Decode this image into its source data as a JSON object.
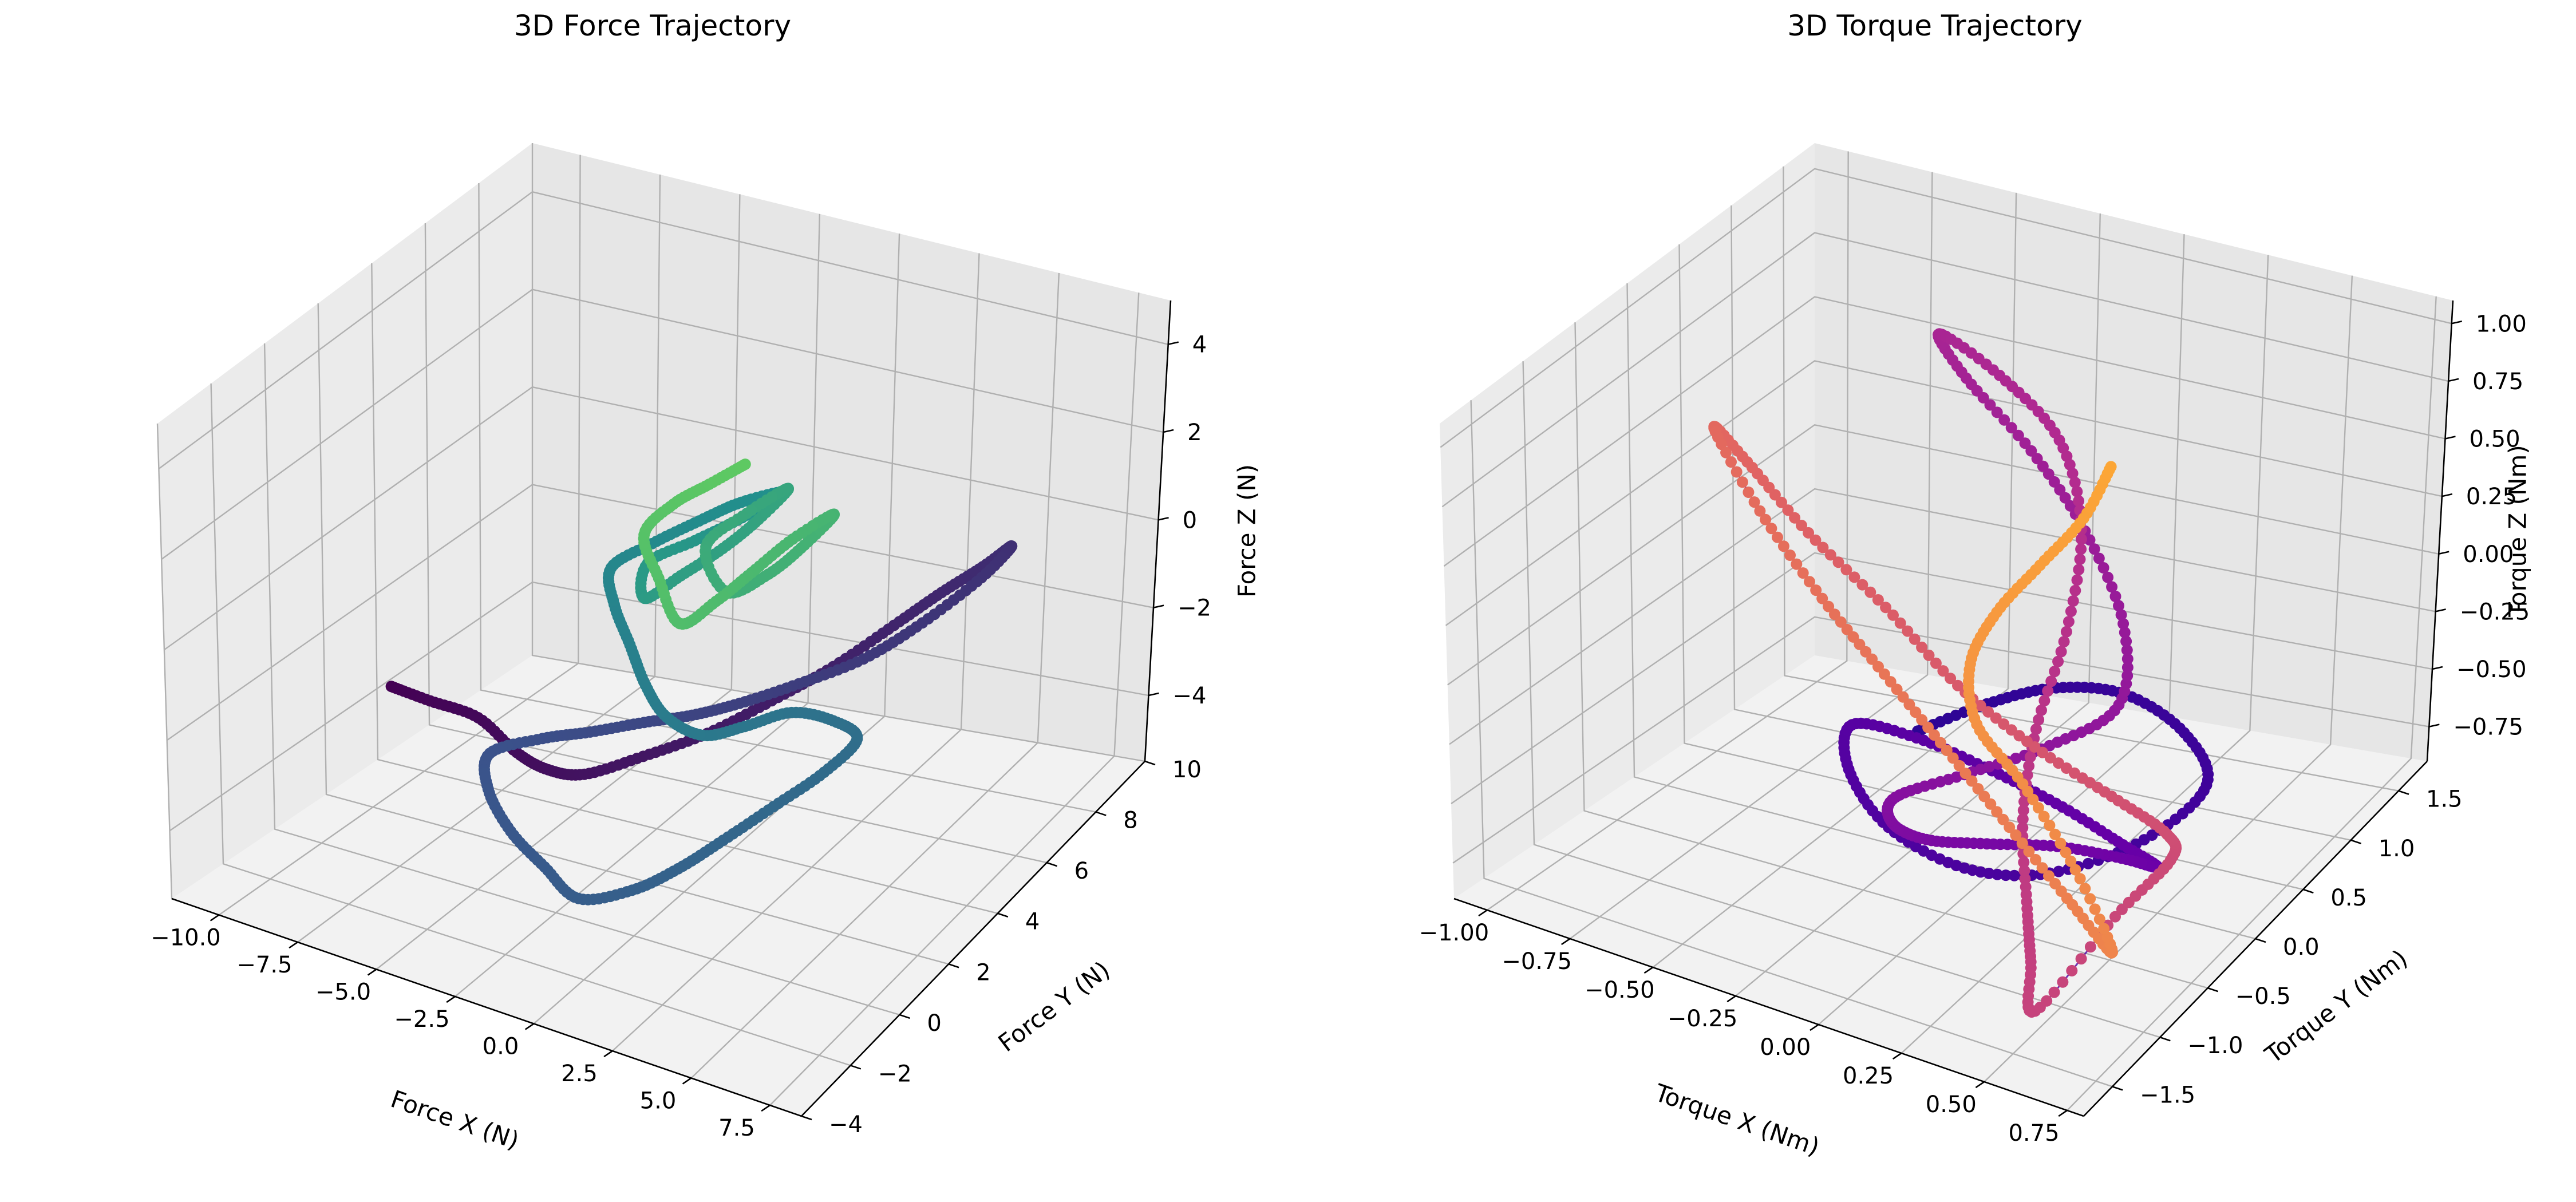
{
  "chart_data": [
    {
      "type": "scatter3d",
      "title": "3D Force Trajectory",
      "xlabel": "Force X (N)",
      "ylabel": "Force Y (N)",
      "zlabel": "Force Z (N)",
      "xlim": [
        -11.5,
        8.5
      ],
      "ylim": [
        -4,
        10
      ],
      "zlim": [
        -5.5,
        5
      ],
      "xticks": [
        "−10.0",
        "−7.5",
        "−5.0",
        "−2.5",
        "0.0",
        "2.5",
        "5.0",
        "7.5"
      ],
      "xtick_values": [
        -10,
        -7.5,
        -5,
        -2.5,
        0,
        2.5,
        5,
        7.5
      ],
      "yticks": [
        "−4",
        "−2",
        "0",
        "2",
        "4",
        "6",
        "8",
        "10"
      ],
      "ytick_values": [
        -4,
        -2,
        0,
        2,
        4,
        6,
        8,
        10
      ],
      "zticks": [
        "−4",
        "−2",
        "0",
        "2",
        "4"
      ],
      "ztick_values": [
        -4,
        -2,
        0,
        2,
        4
      ],
      "grid": true,
      "colormap": "viridis",
      "series": [
        {
          "color_stops": [
            "#440154",
            "#3b528b",
            "#21918c",
            "#5ec962"
          ],
          "values": [
            [
              -8.5,
              1.0,
              -2.2
            ],
            [
              -7.6,
              1.4,
              -2.5
            ],
            [
              -6.4,
              1.8,
              -2.8
            ],
            [
              -5.0,
              1.6,
              -3.2
            ],
            [
              -3.5,
              1.0,
              -3.0
            ],
            [
              -2.0,
              0.6,
              -2.6
            ],
            [
              -0.6,
              1.2,
              -2.2
            ],
            [
              0.8,
              2.0,
              -1.8
            ],
            [
              2.2,
              2.8,
              -1.2
            ],
            [
              3.5,
              3.6,
              -0.6
            ],
            [
              4.6,
              4.6,
              0.0
            ],
            [
              5.6,
              5.2,
              0.6
            ],
            [
              6.4,
              5.8,
              1.0
            ],
            [
              6.8,
              6.4,
              1.2
            ],
            [
              6.2,
              6.0,
              0.6
            ],
            [
              5.0,
              5.2,
              -0.2
            ],
            [
              3.8,
              4.4,
              -0.8
            ],
            [
              2.4,
              3.6,
              -1.2
            ],
            [
              1.0,
              3.0,
              -1.6
            ],
            [
              -0.2,
              2.6,
              -1.9
            ],
            [
              -1.4,
              2.2,
              -2.1
            ],
            [
              -2.8,
              1.8,
              -2.4
            ],
            [
              -4.0,
              1.4,
              -2.6
            ],
            [
              -5.2,
              0.8,
              -2.9
            ],
            [
              -4.6,
              0.0,
              -3.2
            ],
            [
              -3.4,
              -0.6,
              -3.6
            ],
            [
              -2.0,
              -1.0,
              -3.9
            ],
            [
              -0.6,
              -1.4,
              -4.1
            ],
            [
              0.8,
              -1.0,
              -3.8
            ],
            [
              1.8,
              -0.4,
              -3.4
            ],
            [
              2.6,
              0.4,
              -3.0
            ],
            [
              3.4,
              1.4,
              -2.6
            ],
            [
              4.2,
              2.4,
              -2.2
            ],
            [
              4.6,
              3.2,
              -1.8
            ],
            [
              4.0,
              3.0,
              -1.4
            ],
            [
              3.0,
              2.6,
              -1.2
            ],
            [
              2.0,
              2.0,
              -1.4
            ],
            [
              1.0,
              1.6,
              -1.6
            ],
            [
              0.0,
              1.4,
              -1.3
            ],
            [
              -1.0,
              1.8,
              -1.0
            ],
            [
              -2.0,
              2.4,
              -0.6
            ],
            [
              -3.0,
              3.0,
              -0.2
            ],
            [
              -3.6,
              3.6,
              0.2
            ],
            [
              -2.8,
              4.2,
              0.6
            ],
            [
              -1.8,
              4.8,
              1.0
            ],
            [
              -0.8,
              5.2,
              1.4
            ],
            [
              0.2,
              5.6,
              1.6
            ],
            [
              -0.6,
              5.0,
              1.2
            ],
            [
              -1.6,
              4.4,
              0.8
            ],
            [
              -2.6,
              3.8,
              0.4
            ],
            [
              -2.2,
              3.2,
              0.0
            ],
            [
              -1.2,
              3.4,
              0.6
            ],
            [
              -0.2,
              3.8,
              1.2
            ],
            [
              0.6,
              4.2,
              1.8
            ],
            [
              1.2,
              4.6,
              2.4
            ],
            [
              0.4,
              4.0,
              2.0
            ],
            [
              -0.4,
              3.4,
              1.4
            ],
            [
              0.6,
              3.0,
              0.8
            ],
            [
              1.6,
              3.4,
              1.2
            ],
            [
              2.4,
              3.8,
              1.8
            ],
            [
              3.0,
              4.2,
              2.4
            ],
            [
              2.2,
              3.6,
              2.0
            ],
            [
              1.4,
              3.0,
              1.4
            ],
            [
              0.6,
              2.6,
              0.8
            ],
            [
              -0.4,
              2.4,
              0.2
            ],
            [
              -1.4,
              2.8,
              0.8
            ],
            [
              -2.2,
              3.2,
              1.4
            ],
            [
              -1.6,
              3.6,
              2.0
            ],
            [
              -0.8,
              4.0,
              2.4
            ],
            [
              0.0,
              4.4,
              2.8
            ]
          ]
        }
      ]
    },
    {
      "type": "scatter3d",
      "title": "3D Torque Trajectory",
      "xlabel": "Torque X (Nm)",
      "ylabel": "Torque Y (Nm)",
      "zlabel": "Torque Z (Nm)",
      "xlim": [
        -1.1,
        0.8
      ],
      "ylim": [
        -1.8,
        1.8
      ],
      "zlim": [
        -0.9,
        1.1
      ],
      "xticks": [
        "−1.00",
        "−0.75",
        "−0.50",
        "−0.25",
        "0.00",
        "0.25",
        "0.50",
        "0.75"
      ],
      "xtick_values": [
        -1.0,
        -0.75,
        -0.5,
        -0.25,
        0.0,
        0.25,
        0.5,
        0.75
      ],
      "yticks": [
        "−1.5",
        "−1.0",
        "−0.5",
        "0.0",
        "0.5",
        "1.0",
        "1.5"
      ],
      "ytick_values": [
        -1.5,
        -1.0,
        -0.5,
        0.0,
        0.5,
        1.0,
        1.5
      ],
      "zticks": [
        "−0.75",
        "−0.50",
        "−0.25",
        "0.00",
        "0.25",
        "0.50",
        "0.75",
        "1.00"
      ],
      "ztick_values": [
        -0.75,
        -0.5,
        -0.25,
        0.0,
        0.25,
        0.5,
        0.75,
        1.0
      ],
      "grid": true,
      "colormap": "plasma",
      "series": [
        {
          "color_stops": [
            "#2c0594",
            "#6a00a8",
            "#b12a90",
            "#e16462",
            "#fca636"
          ],
          "values": [
            [
              -0.2,
              -0.1,
              -0.35
            ],
            [
              -0.05,
              0.1,
              -0.25
            ],
            [
              0.1,
              0.3,
              -0.2
            ],
            [
              0.25,
              0.5,
              -0.25
            ],
            [
              0.4,
              0.6,
              -0.4
            ],
            [
              0.5,
              0.5,
              -0.55
            ],
            [
              0.4,
              0.2,
              -0.7
            ],
            [
              0.2,
              -0.1,
              -0.8
            ],
            [
              0.0,
              -0.3,
              -0.78
            ],
            [
              -0.2,
              -0.4,
              -0.65
            ],
            [
              -0.35,
              -0.3,
              -0.5
            ],
            [
              -0.4,
              -0.1,
              -0.4
            ],
            [
              -0.25,
              0.05,
              -0.45
            ],
            [
              -0.05,
              0.15,
              -0.55
            ],
            [
              0.15,
              0.2,
              -0.65
            ],
            [
              0.35,
              0.15,
              -0.72
            ],
            [
              0.5,
              0.0,
              -0.7
            ],
            [
              0.45,
              -0.2,
              -0.6
            ],
            [
              0.3,
              -0.35,
              -0.55
            ],
            [
              0.1,
              -0.4,
              -0.6
            ],
            [
              -0.1,
              -0.35,
              -0.68
            ],
            [
              -0.25,
              -0.2,
              -0.72
            ],
            [
              -0.3,
              0.0,
              -0.7
            ],
            [
              -0.15,
              0.2,
              -0.62
            ],
            [
              0.05,
              0.4,
              -0.5
            ],
            [
              0.2,
              0.6,
              -0.35
            ],
            [
              0.15,
              0.8,
              -0.1
            ],
            [
              0.0,
              0.9,
              0.2
            ],
            [
              -0.15,
              0.85,
              0.5
            ],
            [
              -0.3,
              0.7,
              0.8
            ],
            [
              -0.35,
              0.6,
              1.0
            ],
            [
              -0.2,
              0.7,
              0.85
            ],
            [
              -0.05,
              0.8,
              0.6
            ],
            [
              0.05,
              0.7,
              0.3
            ],
            [
              0.1,
              0.4,
              0.0
            ],
            [
              0.1,
              0.1,
              -0.3
            ],
            [
              0.15,
              -0.2,
              -0.55
            ],
            [
              0.25,
              -0.5,
              -0.75
            ],
            [
              0.35,
              -0.8,
              -0.85
            ],
            [
              0.45,
              -1.1,
              -0.9
            ],
            [
              0.55,
              -0.6,
              -0.65
            ],
            [
              0.6,
              -0.2,
              -0.55
            ],
            [
              0.5,
              0.1,
              -0.6
            ],
            [
              0.3,
              0.2,
              -0.55
            ],
            [
              0.05,
              0.25,
              -0.45
            ],
            [
              -0.2,
              0.3,
              -0.3
            ],
            [
              -0.45,
              0.4,
              -0.1
            ],
            [
              -0.7,
              0.45,
              0.1
            ],
            [
              -0.9,
              0.5,
              0.3
            ],
            [
              -1.0,
              0.5,
              0.4
            ],
            [
              -0.8,
              0.3,
              0.2
            ],
            [
              -0.55,
              0.1,
              0.0
            ],
            [
              -0.3,
              -0.1,
              -0.15
            ],
            [
              -0.05,
              -0.3,
              -0.3
            ],
            [
              0.2,
              -0.5,
              -0.45
            ],
            [
              0.45,
              -0.7,
              -0.6
            ],
            [
              0.6,
              -0.8,
              -0.7
            ],
            [
              0.4,
              -0.5,
              -0.55
            ],
            [
              0.15,
              -0.2,
              -0.4
            ],
            [
              -0.05,
              0.0,
              -0.3
            ],
            [
              -0.1,
              0.1,
              -0.1
            ],
            [
              -0.05,
              0.2,
              0.1
            ],
            [
              0.05,
              0.3,
              0.3
            ],
            [
              0.15,
              0.4,
              0.5
            ],
            [
              0.2,
              0.5,
              0.7
            ]
          ]
        }
      ]
    }
  ]
}
